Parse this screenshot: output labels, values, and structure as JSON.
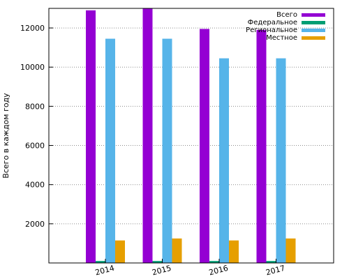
{
  "chart_data": {
    "type": "bar",
    "title": "",
    "xlabel": "",
    "ylabel": "Всего в каждом году",
    "categories": [
      "2014",
      "2015",
      "2016",
      "2017"
    ],
    "ylim": [
      0,
      13000
    ],
    "yticks": [
      2000,
      4000,
      6000,
      8000,
      10000,
      12000
    ],
    "grid": true,
    "legend_position": "top-right",
    "series": [
      {
        "name": "Всего",
        "color": "#9400d3",
        "values": [
          12900,
          13000,
          11950,
          11900
        ]
      },
      {
        "name": "Федеральное",
        "color": "#009e73",
        "values": [
          100,
          100,
          100,
          100
        ]
      },
      {
        "name": "Региональное",
        "color": "#56b4e9",
        "values": [
          11450,
          11450,
          10450,
          10450
        ]
      },
      {
        "name": "Местное",
        "color": "#e69f00",
        "values": [
          1150,
          1250,
          1150,
          1250
        ]
      }
    ]
  }
}
